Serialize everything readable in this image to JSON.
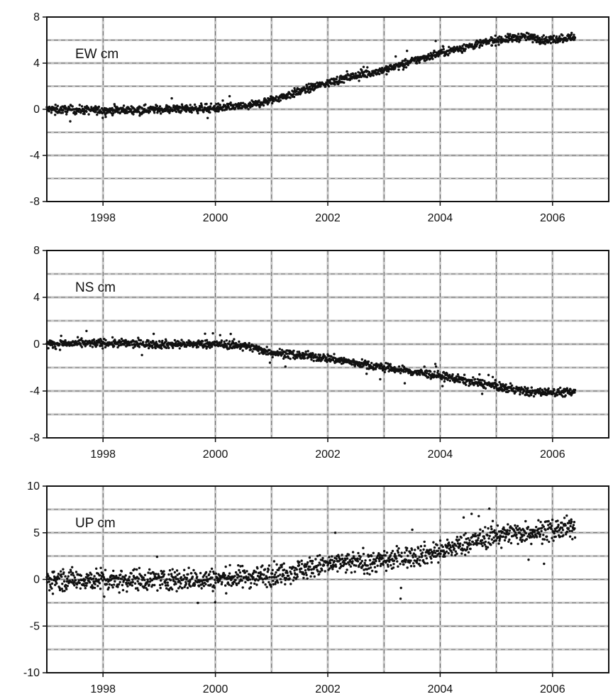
{
  "header": {
    "text": ""
  },
  "chart_data": [
    {
      "type": "scatter",
      "title": "EW cm",
      "xlabel": "",
      "ylabel": "",
      "xlim": [
        1997.0,
        2007.0
      ],
      "ylim": [
        -8,
        8
      ],
      "xticks": [
        1998,
        2000,
        2002,
        2004,
        2006
      ],
      "yticks": [
        8,
        4,
        0,
        -4,
        -8
      ],
      "xtick_labels": [
        "1998",
        "2000",
        "2002",
        "2004",
        "2006"
      ],
      "ytick_labels": [
        "8",
        "4",
        "0",
        "-4",
        "-8"
      ],
      "grid": true,
      "marker_color": "#111111",
      "spread": 0.4,
      "trend": [
        {
          "x": 1997.0,
          "y": 0.0
        },
        {
          "x": 1998.0,
          "y": -0.1
        },
        {
          "x": 1999.0,
          "y": 0.0
        },
        {
          "x": 2000.0,
          "y": 0.1
        },
        {
          "x": 2000.6,
          "y": 0.3
        },
        {
          "x": 2001.0,
          "y": 0.8
        },
        {
          "x": 2002.0,
          "y": 2.3
        },
        {
          "x": 2002.5,
          "y": 2.9
        },
        {
          "x": 2003.0,
          "y": 3.4
        },
        {
          "x": 2004.0,
          "y": 4.9
        },
        {
          "x": 2005.0,
          "y": 6.0
        },
        {
          "x": 2005.5,
          "y": 6.3
        },
        {
          "x": 2005.9,
          "y": 6.0
        },
        {
          "x": 2006.4,
          "y": 6.3
        }
      ]
    },
    {
      "type": "scatter",
      "title": "NS cm",
      "xlabel": "",
      "ylabel": "",
      "xlim": [
        1997.0,
        2007.0
      ],
      "ylim": [
        -8,
        8
      ],
      "xticks": [
        1998,
        2000,
        2002,
        2004,
        2006
      ],
      "yticks": [
        8,
        4,
        0,
        -4,
        -8
      ],
      "xtick_labels": [
        "1998",
        "2000",
        "2002",
        "2004",
        "2006"
      ],
      "ytick_labels": [
        "8",
        "4",
        "0",
        "-4",
        "-8"
      ],
      "grid": true,
      "marker_color": "#111111",
      "spread": 0.4,
      "trend": [
        {
          "x": 1997.0,
          "y": 0.0
        },
        {
          "x": 1998.0,
          "y": 0.1
        },
        {
          "x": 1999.0,
          "y": 0.0
        },
        {
          "x": 2000.0,
          "y": 0.0
        },
        {
          "x": 2000.5,
          "y": -0.1
        },
        {
          "x": 2001.0,
          "y": -0.7
        },
        {
          "x": 2002.0,
          "y": -1.2
        },
        {
          "x": 2003.0,
          "y": -2.0
        },
        {
          "x": 2004.0,
          "y": -2.7
        },
        {
          "x": 2005.0,
          "y": -3.6
        },
        {
          "x": 2005.6,
          "y": -4.1
        },
        {
          "x": 2006.4,
          "y": -4.1
        }
      ]
    },
    {
      "type": "scatter",
      "title": "UP cm",
      "xlabel": "",
      "ylabel": "",
      "xlim": [
        1997.0,
        2007.0
      ],
      "ylim": [
        -10,
        10
      ],
      "xticks": [
        1998,
        2000,
        2002,
        2004,
        2006
      ],
      "yticks": [
        10,
        5,
        0,
        -5,
        -10
      ],
      "xtick_labels": [
        "1998",
        "2000",
        "2002",
        "2004",
        "2006"
      ],
      "ytick_labels": [
        "10",
        "5",
        "0",
        "-5",
        "-10"
      ],
      "grid": true,
      "marker_color": "#111111",
      "spread": 1.3,
      "trend": [
        {
          "x": 1997.0,
          "y": 0.0
        },
        {
          "x": 1998.0,
          "y": 0.0
        },
        {
          "x": 1999.0,
          "y": 0.0
        },
        {
          "x": 2000.0,
          "y": 0.0
        },
        {
          "x": 2001.0,
          "y": 0.5
        },
        {
          "x": 2002.0,
          "y": 1.6
        },
        {
          "x": 2003.0,
          "y": 2.0
        },
        {
          "x": 2004.0,
          "y": 3.0
        },
        {
          "x": 2005.0,
          "y": 4.8
        },
        {
          "x": 2006.4,
          "y": 5.5
        }
      ]
    }
  ]
}
